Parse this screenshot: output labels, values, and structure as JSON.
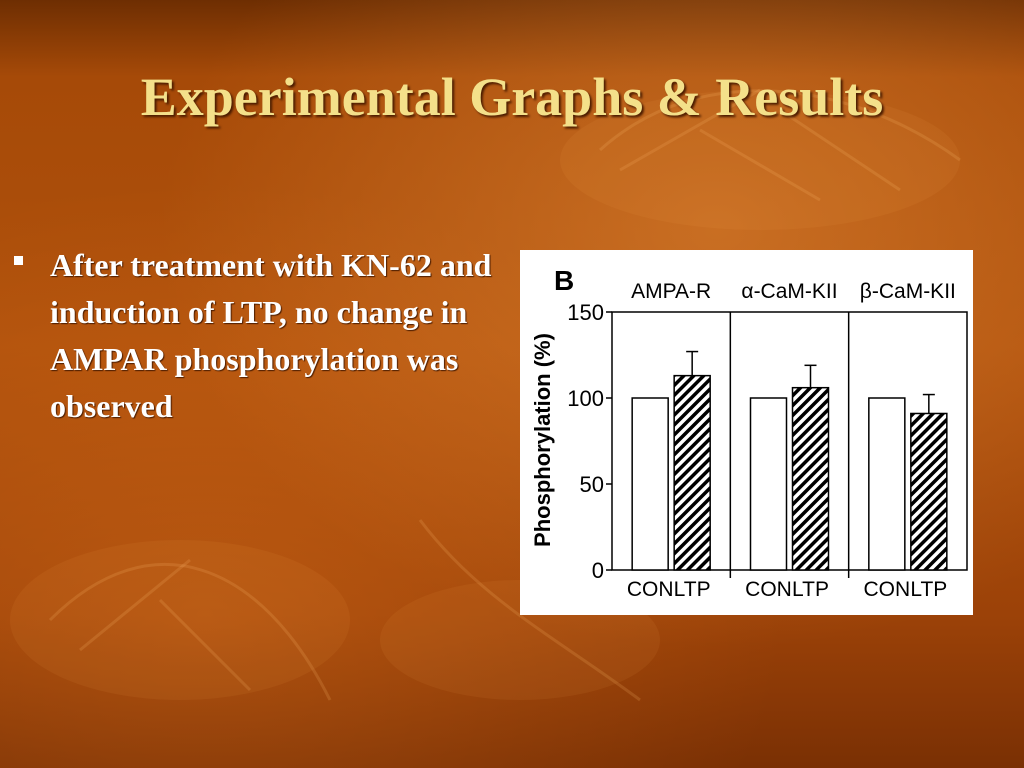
{
  "slide": {
    "title": "Experimental Graphs & Results",
    "bullet": "After treatment with KN-62 and induction of LTP, no change in AMPAR phosphorylation was observed"
  },
  "colors": {
    "title": "#f4e08a",
    "text": "#ffffff",
    "background": "#a64a08"
  },
  "chart_data": {
    "type": "bar",
    "panel_label": "B",
    "ylabel": "Phosphorylation (%)",
    "ylim": [
      0,
      150
    ],
    "yticks": [
      "0",
      "50",
      "100",
      "150"
    ],
    "groups": [
      {
        "label": "AMPA-R",
        "bars": [
          {
            "category": "CON",
            "value": 100,
            "error": 0,
            "style": "open"
          },
          {
            "category": "LTP",
            "value": 113,
            "error": 14,
            "style": "hatched"
          }
        ]
      },
      {
        "label": "α-CaM-KII",
        "bars": [
          {
            "category": "CON",
            "value": 100,
            "error": 0,
            "style": "open"
          },
          {
            "category": "LTP",
            "value": 106,
            "error": 13,
            "style": "hatched"
          }
        ]
      },
      {
        "label": "β-CaM-KII",
        "bars": [
          {
            "category": "CON",
            "value": 100,
            "error": 0,
            "style": "open"
          },
          {
            "category": "LTP",
            "value": 91,
            "error": 11,
            "style": "hatched"
          }
        ]
      }
    ]
  }
}
